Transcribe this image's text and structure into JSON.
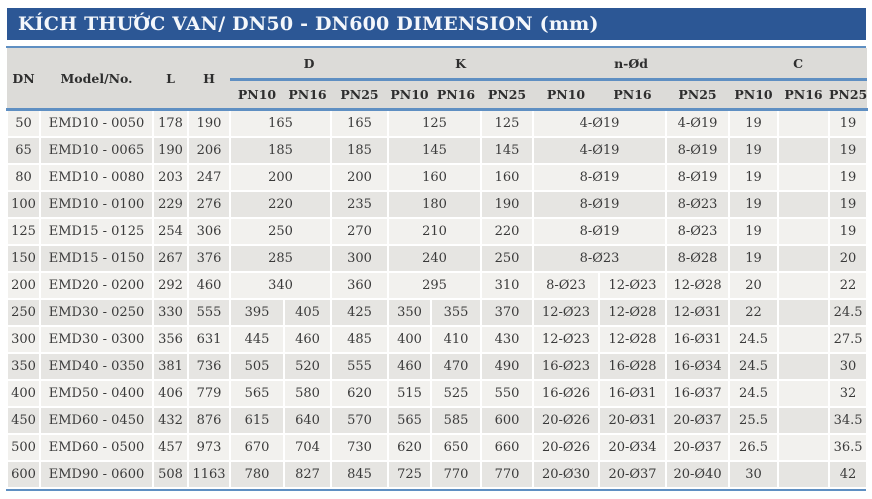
{
  "title": "KÍCH THƯỚC VAN/ DN50 - DN600 DIMENSION (mm)",
  "colors": {
    "title_bar_bg": "#2c5795",
    "title_text": "#f4f7fb",
    "accent_line": "#5f8fc2",
    "header_bg": "#dcdbd8",
    "row_light": "#f2f1ee",
    "row_dark": "#e6e5e2",
    "cell_border": "#ffffff",
    "text": "#3a3a3a"
  },
  "header": {
    "dn": "DN",
    "model": "Model/No.",
    "l": "L",
    "h": "H",
    "d": "D",
    "k": "K",
    "nod": "n-Ød",
    "c": "C",
    "pn10": "PN10",
    "pn16": "PN16",
    "pn25": "PN25"
  },
  "rows": [
    {
      "dn": "50",
      "model": "EMD10 - 0050",
      "l": "178",
      "h": "190",
      "cells": [
        [
          "165",
          2
        ],
        [
          "165",
          1
        ],
        [
          "125",
          2
        ],
        [
          "125",
          1
        ],
        [
          "4-Ø19",
          2
        ],
        [
          "4-Ø19",
          1
        ],
        [
          "19",
          1
        ],
        [
          "",
          1
        ],
        [
          "19",
          1
        ]
      ]
    },
    {
      "dn": "65",
      "model": "EMD10 - 0065",
      "l": "190",
      "h": "206",
      "cells": [
        [
          "185",
          2
        ],
        [
          "185",
          1
        ],
        [
          "145",
          2
        ],
        [
          "145",
          1
        ],
        [
          "4-Ø19",
          2
        ],
        [
          "8-Ø19",
          1
        ],
        [
          "19",
          1
        ],
        [
          "",
          1
        ],
        [
          "19",
          1
        ]
      ]
    },
    {
      "dn": "80",
      "model": "EMD10 - 0080",
      "l": "203",
      "h": "247",
      "cells": [
        [
          "200",
          2
        ],
        [
          "200",
          1
        ],
        [
          "160",
          2
        ],
        [
          "160",
          1
        ],
        [
          "8-Ø19",
          2
        ],
        [
          "8-Ø19",
          1
        ],
        [
          "19",
          1
        ],
        [
          "",
          1
        ],
        [
          "19",
          1
        ]
      ]
    },
    {
      "dn": "100",
      "model": "EMD10 - 0100",
      "l": "229",
      "h": "276",
      "cells": [
        [
          "220",
          2
        ],
        [
          "235",
          1
        ],
        [
          "180",
          2
        ],
        [
          "190",
          1
        ],
        [
          "8-Ø19",
          2
        ],
        [
          "8-Ø23",
          1
        ],
        [
          "19",
          1
        ],
        [
          "",
          1
        ],
        [
          "19",
          1
        ]
      ]
    },
    {
      "dn": "125",
      "model": "EMD15 - 0125",
      "l": "254",
      "h": "306",
      "cells": [
        [
          "250",
          2
        ],
        [
          "270",
          1
        ],
        [
          "210",
          2
        ],
        [
          "220",
          1
        ],
        [
          "8-Ø19",
          2
        ],
        [
          "8-Ø23",
          1
        ],
        [
          "19",
          1
        ],
        [
          "",
          1
        ],
        [
          "19",
          1
        ]
      ]
    },
    {
      "dn": "150",
      "model": "EMD15 - 0150",
      "l": "267",
      "h": "376",
      "cells": [
        [
          "285",
          2
        ],
        [
          "300",
          1
        ],
        [
          "240",
          2
        ],
        [
          "250",
          1
        ],
        [
          "8-Ø23",
          2
        ],
        [
          "8-Ø28",
          1
        ],
        [
          "19",
          1
        ],
        [
          "",
          1
        ],
        [
          "20",
          1
        ]
      ]
    },
    {
      "dn": "200",
      "model": "EMD20 - 0200",
      "l": "292",
      "h": "460",
      "cells": [
        [
          "340",
          2
        ],
        [
          "360",
          1
        ],
        [
          "295",
          2
        ],
        [
          "310",
          1
        ],
        [
          "8-Ø23",
          1
        ],
        [
          "12-Ø23",
          1
        ],
        [
          "12-Ø28",
          1
        ],
        [
          "20",
          1
        ],
        [
          "",
          1
        ],
        [
          "22",
          1
        ]
      ]
    },
    {
      "dn": "250",
      "model": "EMD30 - 0250",
      "l": "330",
      "h": "555",
      "cells": [
        [
          "395",
          1
        ],
        [
          "405",
          1
        ],
        [
          "425",
          1
        ],
        [
          "350",
          1
        ],
        [
          "355",
          1
        ],
        [
          "370",
          1
        ],
        [
          "12-Ø23",
          1
        ],
        [
          "12-Ø28",
          1
        ],
        [
          "12-Ø31",
          1
        ],
        [
          "22",
          1
        ],
        [
          "",
          1
        ],
        [
          "24.5",
          1
        ]
      ]
    },
    {
      "dn": "300",
      "model": "EMD30 - 0300",
      "l": "356",
      "h": "631",
      "cells": [
        [
          "445",
          1
        ],
        [
          "460",
          1
        ],
        [
          "485",
          1
        ],
        [
          "400",
          1
        ],
        [
          "410",
          1
        ],
        [
          "430",
          1
        ],
        [
          "12-Ø23",
          1
        ],
        [
          "12-Ø28",
          1
        ],
        [
          "16-Ø31",
          1
        ],
        [
          "24.5",
          1
        ],
        [
          "",
          1
        ],
        [
          "27.5",
          1
        ]
      ]
    },
    {
      "dn": "350",
      "model": "EMD40 - 0350",
      "l": "381",
      "h": "736",
      "cells": [
        [
          "505",
          1
        ],
        [
          "520",
          1
        ],
        [
          "555",
          1
        ],
        [
          "460",
          1
        ],
        [
          "470",
          1
        ],
        [
          "490",
          1
        ],
        [
          "16-Ø23",
          1
        ],
        [
          "16-Ø28",
          1
        ],
        [
          "16-Ø34",
          1
        ],
        [
          "24.5",
          1
        ],
        [
          "",
          1
        ],
        [
          "30",
          1
        ]
      ]
    },
    {
      "dn": "400",
      "model": "EMD50 - 0400",
      "l": "406",
      "h": "779",
      "cells": [
        [
          "565",
          1
        ],
        [
          "580",
          1
        ],
        [
          "620",
          1
        ],
        [
          "515",
          1
        ],
        [
          "525",
          1
        ],
        [
          "550",
          1
        ],
        [
          "16-Ø26",
          1
        ],
        [
          "16-Ø31",
          1
        ],
        [
          "16-Ø37",
          1
        ],
        [
          "24.5",
          1
        ],
        [
          "",
          1
        ],
        [
          "32",
          1
        ]
      ]
    },
    {
      "dn": "450",
      "model": "EMD60 - 0450",
      "l": "432",
      "h": "876",
      "cells": [
        [
          "615",
          1
        ],
        [
          "640",
          1
        ],
        [
          "570",
          1
        ],
        [
          "565",
          1
        ],
        [
          "585",
          1
        ],
        [
          "600",
          1
        ],
        [
          "20-Ø26",
          1
        ],
        [
          "20-Ø31",
          1
        ],
        [
          "20-Ø37",
          1
        ],
        [
          "25.5",
          1
        ],
        [
          "",
          1
        ],
        [
          "34.5",
          1
        ]
      ]
    },
    {
      "dn": "500",
      "model": "EMD60 - 0500",
      "l": "457",
      "h": "973",
      "cells": [
        [
          "670",
          1
        ],
        [
          "704",
          1
        ],
        [
          "730",
          1
        ],
        [
          "620",
          1
        ],
        [
          "650",
          1
        ],
        [
          "660",
          1
        ],
        [
          "20-Ø26",
          1
        ],
        [
          "20-Ø34",
          1
        ],
        [
          "20-Ø37",
          1
        ],
        [
          "26.5",
          1
        ],
        [
          "",
          1
        ],
        [
          "36.5",
          1
        ]
      ]
    },
    {
      "dn": "600",
      "model": "EMD90 - 0600",
      "l": "508",
      "h": "1163",
      "cells": [
        [
          "780",
          1
        ],
        [
          "827",
          1
        ],
        [
          "845",
          1
        ],
        [
          "725",
          1
        ],
        [
          "770",
          1
        ],
        [
          "770",
          1
        ],
        [
          "20-Ø30",
          1
        ],
        [
          "20-Ø37",
          1
        ],
        [
          "20-Ø40",
          1
        ],
        [
          "30",
          1
        ],
        [
          "",
          1
        ],
        [
          "42",
          1
        ]
      ]
    }
  ]
}
